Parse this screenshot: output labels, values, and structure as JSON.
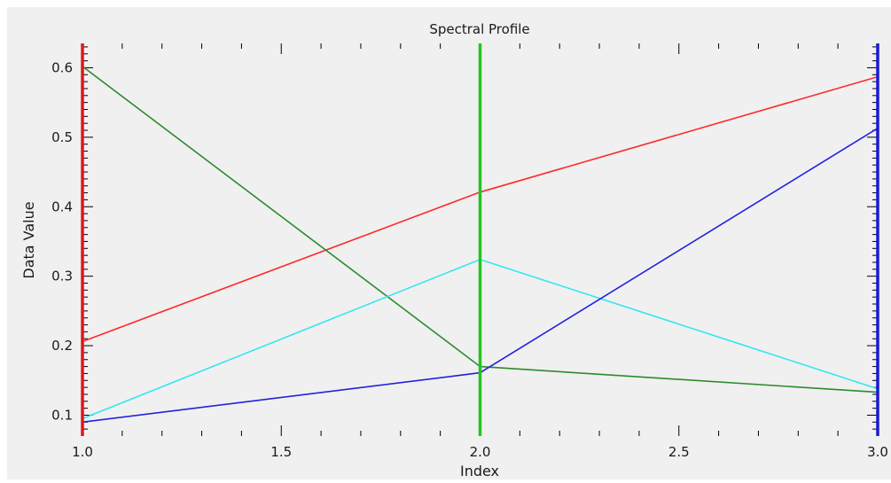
{
  "chart_data": {
    "type": "line",
    "title": "Spectral Profile",
    "xlabel": "Index",
    "ylabel": "Data Value",
    "xlim": [
      1.0,
      3.0
    ],
    "ylim": [
      0.07,
      0.635
    ],
    "x_ticks": [
      1.0,
      1.5,
      2.0,
      2.5,
      3.0
    ],
    "x_tick_labels": [
      "1.0",
      "1.5",
      "2.0",
      "2.5",
      "3.0"
    ],
    "y_ticks": [
      0.1,
      0.2,
      0.3,
      0.4,
      0.5,
      0.6
    ],
    "y_tick_labels": [
      "0.1",
      "0.2",
      "0.3",
      "0.4",
      "0.5",
      "0.6"
    ],
    "x": [
      1.0,
      2.0,
      3.0
    ],
    "series": [
      {
        "color": "#ff2a2a",
        "values": [
          0.206,
          0.421,
          0.587
        ]
      },
      {
        "color": "#2d8a2d",
        "values": [
          0.602,
          0.17,
          0.133
        ]
      },
      {
        "color": "#33e6f0",
        "values": [
          0.095,
          0.324,
          0.138
        ]
      },
      {
        "color": "#2222dd",
        "values": [
          0.09,
          0.161,
          0.513
        ]
      }
    ],
    "markers": [
      {
        "x": 1.0,
        "color": "#e0161b"
      },
      {
        "x": 2.0,
        "color": "#22c422"
      },
      {
        "x": 3.0,
        "color": "#1a1ad0"
      }
    ],
    "plot_background": "#f0f0f0",
    "grid": false,
    "legend": "none"
  }
}
